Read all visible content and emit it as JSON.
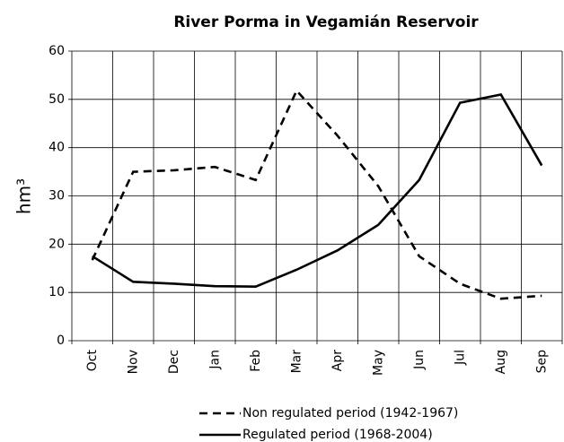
{
  "chart_data": {
    "type": "line",
    "title": "River Porma in Vegamián Reservoir",
    "y_label": "hm³",
    "categories": [
      "Oct",
      "Nov",
      "Dec",
      "Jan",
      "Feb",
      "Mar",
      "Apr",
      "May",
      "Jun",
      "Jul",
      "Aug",
      "Sep"
    ],
    "series": [
      {
        "name": "Non regulated period (1942-1967)",
        "color": "#000000",
        "dash": true,
        "values": [
          16.7,
          35,
          35.3,
          36,
          33.3,
          51.8,
          42.5,
          32,
          17.5,
          11.8,
          8.7,
          9.3
        ]
      },
      {
        "name": "Regulated period (1968-2004)",
        "color": "#000000",
        "dash": false,
        "values": [
          17.5,
          12.2,
          11.8,
          11.3,
          11.2,
          14.7,
          18.7,
          24,
          33.3,
          49.3,
          51,
          36.3
        ]
      }
    ],
    "ylim": [
      0,
      60
    ],
    "yticks": [
      0,
      10,
      20,
      30,
      40,
      50,
      60
    ],
    "grid": true
  }
}
